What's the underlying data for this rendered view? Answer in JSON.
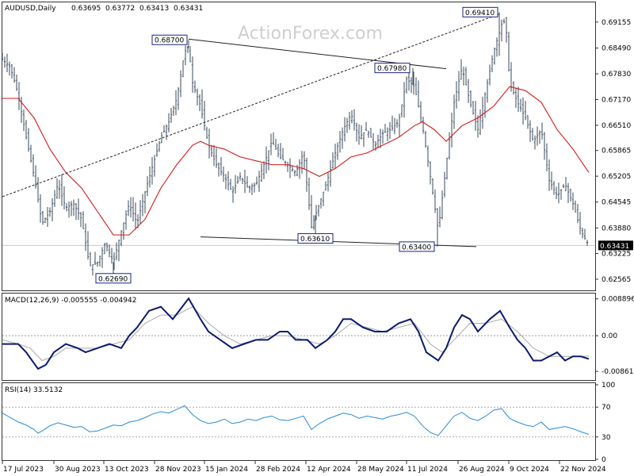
{
  "chart_data": [
    {
      "type": "ohlc",
      "title": "AUDUSD,Daily",
      "ohlc_header": [
        "0.63695",
        "0.63772",
        "0.63413",
        "0.63431"
      ],
      "watermark": "ActionForex.com",
      "last_price": "0.63431",
      "ylim": [
        0.6232,
        0.6962
      ],
      "y_ticks": [
        "0.69155",
        "0.68490",
        "0.67830",
        "0.67170",
        "0.66510",
        "0.65865",
        "0.65205",
        "0.64545",
        "0.63880",
        "0.63225",
        "0.62565"
      ],
      "x_ticks": [
        "17 Jul 2023",
        "30 Aug 2023",
        "13 Oct 2023",
        "28 Nov 2023",
        "15 Jan 2024",
        "28 Feb 2024",
        "12 Apr 2024",
        "28 May 2024",
        "11 Jul 2024",
        "26 Aug 2024",
        "9 Oct 2024",
        "22 Nov 2024"
      ],
      "close_path": [
        [
          0,
          0.682
        ],
        [
          10,
          0.68
        ],
        [
          20,
          0.673
        ],
        [
          30,
          0.662
        ],
        [
          40,
          0.652
        ],
        [
          50,
          0.64
        ],
        [
          60,
          0.643
        ],
        [
          70,
          0.65
        ],
        [
          80,
          0.644
        ],
        [
          90,
          0.645
        ],
        [
          100,
          0.641
        ],
        [
          110,
          0.629
        ],
        [
          120,
          0.63
        ],
        [
          130,
          0.635
        ],
        [
          140,
          0.63
        ],
        [
          150,
          0.638
        ],
        [
          160,
          0.645
        ],
        [
          170,
          0.64
        ],
        [
          180,
          0.648
        ],
        [
          190,
          0.655
        ],
        [
          200,
          0.662
        ],
        [
          210,
          0.666
        ],
        [
          220,
          0.672
        ],
        [
          230,
          0.684
        ],
        [
          235,
          0.685
        ],
        [
          240,
          0.676
        ],
        [
          250,
          0.67
        ],
        [
          260,
          0.66
        ],
        [
          270,
          0.655
        ],
        [
          280,
          0.652
        ],
        [
          290,
          0.648
        ],
        [
          300,
          0.652
        ],
        [
          310,
          0.649
        ],
        [
          320,
          0.65
        ],
        [
          330,
          0.655
        ],
        [
          340,
          0.661
        ],
        [
          350,
          0.657
        ],
        [
          360,
          0.655
        ],
        [
          370,
          0.653
        ],
        [
          380,
          0.658
        ],
        [
          390,
          0.639
        ],
        [
          400,
          0.645
        ],
        [
          410,
          0.651
        ],
        [
          420,
          0.658
        ],
        [
          430,
          0.664
        ],
        [
          440,
          0.668
        ],
        [
          450,
          0.662
        ],
        [
          460,
          0.664
        ],
        [
          470,
          0.66
        ],
        [
          480,
          0.663
        ],
        [
          490,
          0.664
        ],
        [
          500,
          0.666
        ],
        [
          510,
          0.677
        ],
        [
          520,
          0.675
        ],
        [
          530,
          0.665
        ],
        [
          540,
          0.652
        ],
        [
          550,
          0.638
        ],
        [
          560,
          0.655
        ],
        [
          570,
          0.671
        ],
        [
          580,
          0.68
        ],
        [
          590,
          0.671
        ],
        [
          600,
          0.664
        ],
        [
          610,
          0.674
        ],
        [
          620,
          0.684
        ],
        [
          630,
          0.691
        ],
        [
          635,
          0.692
        ],
        [
          640,
          0.676
        ],
        [
          650,
          0.671
        ],
        [
          660,
          0.667
        ],
        [
          670,
          0.661
        ],
        [
          680,
          0.664
        ],
        [
          690,
          0.651
        ],
        [
          700,
          0.647
        ],
        [
          710,
          0.65
        ],
        [
          720,
          0.645
        ],
        [
          730,
          0.638
        ],
        [
          740,
          0.6343
        ]
      ],
      "ma_path": [
        [
          0,
          0.672
        ],
        [
          20,
          0.672
        ],
        [
          40,
          0.667
        ],
        [
          60,
          0.659
        ],
        [
          80,
          0.653
        ],
        [
          100,
          0.649
        ],
        [
          120,
          0.643
        ],
        [
          140,
          0.637
        ],
        [
          160,
          0.637
        ],
        [
          180,
          0.641
        ],
        [
          200,
          0.649
        ],
        [
          220,
          0.655
        ],
        [
          240,
          0.66
        ],
        [
          250,
          0.661
        ],
        [
          260,
          0.66
        ],
        [
          280,
          0.659
        ],
        [
          300,
          0.657
        ],
        [
          320,
          0.656
        ],
        [
          340,
          0.655
        ],
        [
          360,
          0.655
        ],
        [
          380,
          0.654
        ],
        [
          400,
          0.652
        ],
        [
          420,
          0.654
        ],
        [
          440,
          0.657
        ],
        [
          460,
          0.658
        ],
        [
          480,
          0.66
        ],
        [
          500,
          0.662
        ],
        [
          520,
          0.665
        ],
        [
          530,
          0.666
        ],
        [
          545,
          0.664
        ],
        [
          560,
          0.661
        ],
        [
          580,
          0.665
        ],
        [
          600,
          0.667
        ],
        [
          620,
          0.67
        ],
        [
          640,
          0.675
        ],
        [
          660,
          0.674
        ],
        [
          680,
          0.671
        ],
        [
          700,
          0.664
        ],
        [
          720,
          0.659
        ],
        [
          740,
          0.653
        ]
      ],
      "annotations": [
        {
          "text": "0.68700",
          "x": 235,
          "y": 0.687
        },
        {
          "text": "0.67980",
          "x": 518,
          "y": 0.6798
        },
        {
          "text": "0.69410",
          "x": 627,
          "y": 0.6941
        },
        {
          "text": "0.63610",
          "x": 395,
          "y": 0.6361
        },
        {
          "text": "0.63400",
          "x": 549,
          "y": 0.634
        },
        {
          "text": "0.62690",
          "x": 140,
          "y": 0.6269
        }
      ],
      "trendlines": [
        {
          "style": "solid",
          "from": [
            235,
            0.6872
          ],
          "to": [
            560,
            0.6796
          ]
        },
        {
          "style": "solid",
          "from": [
            250,
            0.6365
          ],
          "to": [
            598,
            0.634
          ]
        },
        {
          "style": "dashed",
          "from": [
            0,
            0.6468
          ],
          "to": [
            627,
            0.6936
          ]
        }
      ]
    },
    {
      "type": "line",
      "title": "MACD(12,26,9) -0.005555 -0.004942",
      "ylim": [
        -0.0105,
        0.0098
      ],
      "y_ticks": [
        "0.008896",
        "0.00",
        "-0.008612"
      ],
      "macd": [
        [
          0,
          -0.002
        ],
        [
          20,
          -0.002
        ],
        [
          30,
          -0.004
        ],
        [
          45,
          -0.008
        ],
        [
          55,
          -0.007
        ],
        [
          65,
          -0.004
        ],
        [
          80,
          -0.002
        ],
        [
          95,
          -0.003
        ],
        [
          105,
          -0.004
        ],
        [
          120,
          -0.003
        ],
        [
          135,
          -0.002
        ],
        [
          150,
          -0.003
        ],
        [
          160,
          0.0
        ],
        [
          170,
          0.002
        ],
        [
          185,
          0.006
        ],
        [
          200,
          0.007
        ],
        [
          215,
          0.004
        ],
        [
          235,
          0.009
        ],
        [
          250,
          0.004
        ],
        [
          260,
          0.001
        ],
        [
          275,
          -0.001
        ],
        [
          290,
          -0.003
        ],
        [
          305,
          -0.002
        ],
        [
          320,
          -0.001
        ],
        [
          335,
          -0.001
        ],
        [
          350,
          0.001
        ],
        [
          360,
          0.001
        ],
        [
          370,
          -0.001
        ],
        [
          385,
          -0.001
        ],
        [
          395,
          -0.003
        ],
        [
          410,
          -0.001
        ],
        [
          420,
          0.001
        ],
        [
          430,
          0.004
        ],
        [
          440,
          0.004
        ],
        [
          455,
          0.002
        ],
        [
          470,
          0.001
        ],
        [
          485,
          0.001
        ],
        [
          500,
          0.003
        ],
        [
          515,
          0.004
        ],
        [
          525,
          0.001
        ],
        [
          535,
          -0.004
        ],
        [
          550,
          -0.006
        ],
        [
          560,
          -0.003
        ],
        [
          570,
          0.002
        ],
        [
          580,
          0.005
        ],
        [
          590,
          0.004
        ],
        [
          600,
          0.001
        ],
        [
          615,
          0.004
        ],
        [
          628,
          0.006
        ],
        [
          640,
          0.002
        ],
        [
          650,
          -0.001
        ],
        [
          660,
          -0.003
        ],
        [
          670,
          -0.006
        ],
        [
          680,
          -0.006
        ],
        [
          690,
          -0.005
        ],
        [
          700,
          -0.004
        ],
        [
          710,
          -0.006
        ],
        [
          720,
          -0.005
        ],
        [
          730,
          -0.005
        ],
        [
          740,
          -0.0056
        ]
      ],
      "signal": [
        [
          0,
          -0.001
        ],
        [
          20,
          -0.002
        ],
        [
          35,
          -0.003
        ],
        [
          50,
          -0.006
        ],
        [
          65,
          -0.005
        ],
        [
          80,
          -0.003
        ],
        [
          100,
          -0.003
        ],
        [
          120,
          -0.003
        ],
        [
          140,
          -0.002
        ],
        [
          160,
          -0.001
        ],
        [
          180,
          0.003
        ],
        [
          200,
          0.005
        ],
        [
          220,
          0.005
        ],
        [
          240,
          0.007
        ],
        [
          260,
          0.003
        ],
        [
          280,
          0.0
        ],
        [
          300,
          -0.002
        ],
        [
          320,
          -0.001
        ],
        [
          340,
          0.0
        ],
        [
          360,
          0.0
        ],
        [
          380,
          -0.001
        ],
        [
          400,
          -0.002
        ],
        [
          420,
          0.0
        ],
        [
          440,
          0.003
        ],
        [
          460,
          0.002
        ],
        [
          480,
          0.001
        ],
        [
          500,
          0.002
        ],
        [
          520,
          0.003
        ],
        [
          540,
          -0.002
        ],
        [
          555,
          -0.004
        ],
        [
          575,
          0.0
        ],
        [
          590,
          0.003
        ],
        [
          610,
          0.003
        ],
        [
          630,
          0.004
        ],
        [
          650,
          0.001
        ],
        [
          670,
          -0.003
        ],
        [
          690,
          -0.005
        ],
        [
          710,
          -0.005
        ],
        [
          730,
          -0.005
        ],
        [
          740,
          -0.0049
        ]
      ]
    },
    {
      "type": "line",
      "title": "RSI(14) 33.5132",
      "ylim": [
        0,
        100
      ],
      "y_ticks": [
        "100",
        "70",
        "30",
        "0"
      ],
      "values": [
        [
          0,
          62
        ],
        [
          10,
          56
        ],
        [
          20,
          50
        ],
        [
          30,
          46
        ],
        [
          40,
          40
        ],
        [
          45,
          35
        ],
        [
          50,
          38
        ],
        [
          60,
          45
        ],
        [
          70,
          49
        ],
        [
          80,
          46
        ],
        [
          90,
          43
        ],
        [
          100,
          44
        ],
        [
          110,
          37
        ],
        [
          120,
          38
        ],
        [
          130,
          42
        ],
        [
          140,
          46
        ],
        [
          150,
          45
        ],
        [
          160,
          50
        ],
        [
          170,
          52
        ],
        [
          180,
          56
        ],
        [
          190,
          61
        ],
        [
          200,
          64
        ],
        [
          210,
          62
        ],
        [
          220,
          67
        ],
        [
          230,
          72
        ],
        [
          240,
          60
        ],
        [
          250,
          52
        ],
        [
          260,
          48
        ],
        [
          270,
          50
        ],
        [
          280,
          54
        ],
        [
          290,
          48
        ],
        [
          300,
          50
        ],
        [
          310,
          54
        ],
        [
          320,
          52
        ],
        [
          330,
          56
        ],
        [
          340,
          58
        ],
        [
          350,
          53
        ],
        [
          360,
          52
        ],
        [
          370,
          55
        ],
        [
          380,
          58
        ],
        [
          390,
          40
        ],
        [
          400,
          48
        ],
        [
          410,
          54
        ],
        [
          420,
          58
        ],
        [
          430,
          62
        ],
        [
          440,
          60
        ],
        [
          450,
          55
        ],
        [
          460,
          58
        ],
        [
          470,
          56
        ],
        [
          480,
          54
        ],
        [
          490,
          58
        ],
        [
          500,
          60
        ],
        [
          510,
          63
        ],
        [
          520,
          58
        ],
        [
          530,
          45
        ],
        [
          540,
          36
        ],
        [
          550,
          32
        ],
        [
          560,
          45
        ],
        [
          570,
          58
        ],
        [
          580,
          63
        ],
        [
          590,
          55
        ],
        [
          600,
          52
        ],
        [
          610,
          58
        ],
        [
          620,
          66
        ],
        [
          630,
          68
        ],
        [
          640,
          55
        ],
        [
          650,
          50
        ],
        [
          660,
          46
        ],
        [
          670,
          44
        ],
        [
          680,
          50
        ],
        [
          690,
          40
        ],
        [
          700,
          42
        ],
        [
          710,
          44
        ],
        [
          720,
          41
        ],
        [
          730,
          37
        ],
        [
          740,
          33.5
        ]
      ]
    }
  ]
}
